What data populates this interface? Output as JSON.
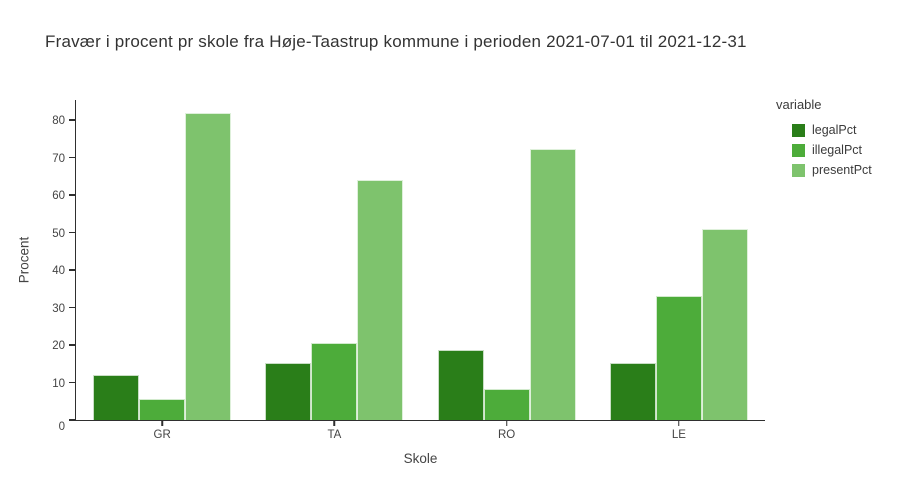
{
  "title": "Fravær i procent pr skole fra Høje-Taastrup kommune i perioden 2021-07-01 til 2021-12-31",
  "legend": {
    "title": "variable"
  },
  "colors": {
    "legalPct": "#2a7e19",
    "illegalPct": "#4dac3a",
    "presentPct": "#7ec36d",
    "axis_line": "#2f2f2f",
    "tick_text": "#444444",
    "title_text": "#333333",
    "background": "#ffffff"
  },
  "chart_data": {
    "type": "bar",
    "mode": "grouped",
    "title": "Fravær i procent pr skole fra Høje-Taastrup kommune i perioden 2021-07-01 til 2021-12-31",
    "xlabel": "Skole",
    "ylabel": "Procent",
    "categories": [
      "GR",
      "TA",
      "RO",
      "LE"
    ],
    "series": [
      {
        "name": "legalPct",
        "color": "#2a7e19",
        "values": [
          12.1,
          15.3,
          18.7,
          15.2
        ]
      },
      {
        "name": "illegalPct",
        "color": "#4dac3a",
        "values": [
          5.6,
          20.5,
          8.3,
          33.0
        ]
      },
      {
        "name": "presentPct",
        "color": "#7ec36d",
        "values": [
          81.8,
          63.9,
          72.3,
          50.9
        ]
      }
    ],
    "ylim": [
      0,
      85.6
    ],
    "yticks": [
      0,
      10,
      20,
      30,
      40,
      50,
      60,
      70,
      80
    ],
    "grid": false,
    "legend_position": "right",
    "legend_title": "variable"
  }
}
